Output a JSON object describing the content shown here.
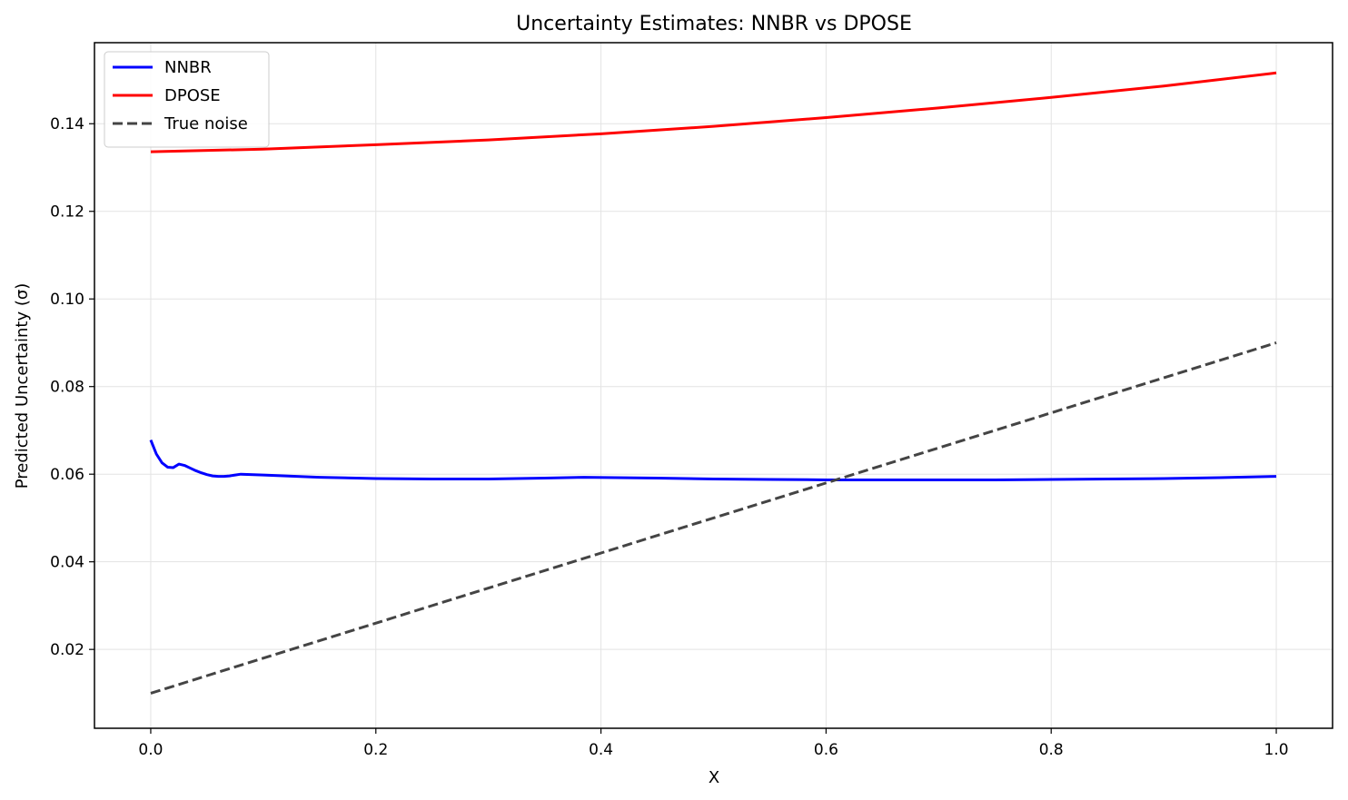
{
  "chart_data": {
    "type": "line",
    "title": "Uncertainty Estimates: NNBR vs DPOSE",
    "xlabel": "X",
    "ylabel": "Predicted Uncertainty (σ)",
    "xlim": [
      -0.05,
      1.05
    ],
    "ylim": [
      0.002,
      0.1585
    ],
    "xticks": [
      0.0,
      0.2,
      0.4,
      0.6,
      0.8,
      1.0
    ],
    "xtick_labels": [
      "0.0",
      "0.2",
      "0.4",
      "0.6",
      "0.8",
      "1.0"
    ],
    "yticks": [
      0.02,
      0.04,
      0.06,
      0.08,
      0.1,
      0.12,
      0.14
    ],
    "ytick_labels": [
      "0.02",
      "0.04",
      "0.06",
      "0.08",
      "0.10",
      "0.12",
      "0.14"
    ],
    "grid": true,
    "legend_position": "top-left",
    "series": [
      {
        "name": "NNBR",
        "color": "#0000ff",
        "style": "solid",
        "x": [
          0.0,
          0.005,
          0.01,
          0.015,
          0.02,
          0.025,
          0.03,
          0.035,
          0.04,
          0.045,
          0.05,
          0.055,
          0.06,
          0.065,
          0.07,
          0.075,
          0.08,
          0.1,
          0.15,
          0.2,
          0.25,
          0.3,
          0.35,
          0.385,
          0.45,
          0.5,
          0.55,
          0.6,
          0.65,
          0.7,
          0.75,
          0.8,
          0.85,
          0.9,
          0.95,
          1.0
        ],
        "y": [
          0.0678,
          0.0646,
          0.0626,
          0.0616,
          0.0615,
          0.0623,
          0.062,
          0.0614,
          0.0608,
          0.0603,
          0.0599,
          0.0596,
          0.0595,
          0.0595,
          0.0596,
          0.0598,
          0.06,
          0.0598,
          0.0593,
          0.059,
          0.0589,
          0.0589,
          0.0591,
          0.0593,
          0.0591,
          0.0589,
          0.0588,
          0.0587,
          0.0587,
          0.0587,
          0.0587,
          0.0588,
          0.0589,
          0.059,
          0.0592,
          0.0595
        ]
      },
      {
        "name": "DPOSE",
        "color": "#ff0000",
        "style": "solid",
        "x": [
          0.0,
          0.1,
          0.2,
          0.3,
          0.4,
          0.5,
          0.6,
          0.7,
          0.8,
          0.9,
          1.0
        ],
        "y": [
          0.1336,
          0.1342,
          0.1352,
          0.1363,
          0.1377,
          0.1394,
          0.1414,
          0.1436,
          0.146,
          0.1486,
          0.1516
        ]
      },
      {
        "name": "True noise",
        "color": "#444444",
        "style": "dashed",
        "x": [
          0.0,
          1.0
        ],
        "y": [
          0.01,
          0.09
        ]
      }
    ]
  }
}
